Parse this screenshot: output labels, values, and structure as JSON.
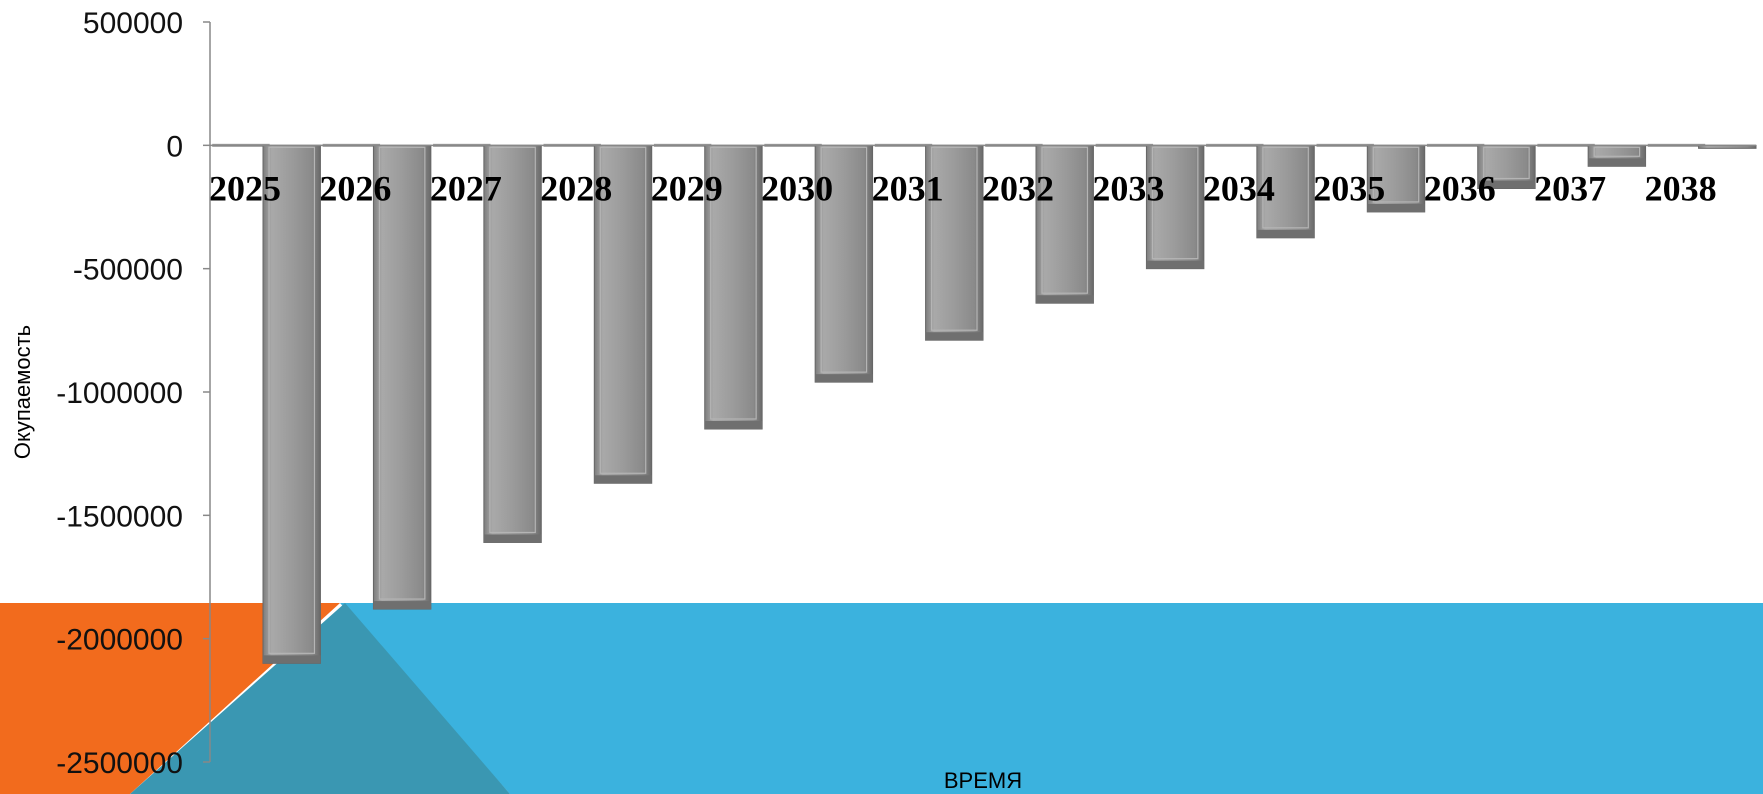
{
  "chart_data": {
    "type": "bar",
    "title": "",
    "xlabel": "ВРЕМЯ",
    "ylabel": "Окупаемость",
    "categories": [
      "2025",
      "2026",
      "2027",
      "2028",
      "2029",
      "2030",
      "2031",
      "2032",
      "2033",
      "2034",
      "2035",
      "2036",
      "2037",
      "2038"
    ],
    "series": [
      {
        "values": [
          0,
          0,
          0,
          0,
          0,
          0,
          0,
          0,
          0,
          0,
          0,
          0,
          0,
          0
        ],
        "color": "#9a9a9a"
      },
      {
        "values": [
          -2100000,
          -1880000,
          -1610000,
          -1370000,
          -1150000,
          -960000,
          -790000,
          -640000,
          -500000,
          -375000,
          -270000,
          -175000,
          -85000,
          0
        ],
        "color": "#8e8e8e"
      }
    ],
    "ylim": [
      -2500000,
      500000
    ],
    "yticks": [
      "500000",
      "0",
      "-500000",
      "-1000000",
      "-1500000",
      "-2000000",
      "-2500000"
    ],
    "grid": false,
    "legend": "none"
  },
  "decor": {
    "orange": "#f26b1d",
    "blue": "#3bb2de",
    "dark_blue": "#3a97b2"
  }
}
